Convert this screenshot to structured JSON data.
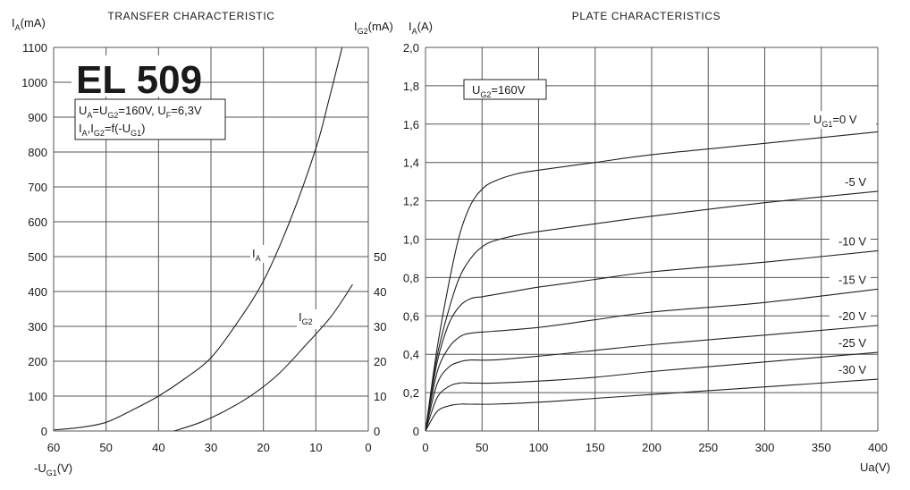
{
  "left_chart": {
    "title": "TRANSFER CHARACTERISTIC",
    "tube": "EL 509",
    "conditions": {
      "line1": {
        "a": "U",
        "b": "A",
        "c": "=U",
        "d": "G2",
        "e": "=160V, U",
        "f": "F",
        "g": "=6,3V"
      },
      "line2": {
        "a": "I",
        "b": "A",
        "c": ",I",
        "d": "G2",
        "e": "=f(-U",
        "f": "G1",
        "g": ")"
      }
    },
    "y_left_label": {
      "main": "I",
      "sub": "A",
      "tail": "(mA)"
    },
    "y_right_label": {
      "main": "I",
      "sub": "G2",
      "tail": "(mA)"
    },
    "x_label": {
      "main": "-U",
      "sub": "G1",
      "tail": "(V)"
    },
    "curve_labels": [
      {
        "main": "I",
        "sub": "A"
      },
      {
        "main": "I",
        "sub": "G2"
      }
    ]
  },
  "right_chart": {
    "title": "PLATE CHARACTERISTICS",
    "y_label": {
      "main": "I",
      "sub": "A",
      "tail": "(A)"
    },
    "x_label": "Ua(V)",
    "box": {
      "a": "U",
      "b": "G2",
      "c": "=160V"
    },
    "series_labels": {
      "first": {
        "main": "U",
        "sub": "G1",
        "tail": "=0 V"
      },
      "others": [
        "-5 V",
        "-10 V",
        "-15 V",
        "-20 V",
        "-25 V",
        "-30 V"
      ]
    }
  },
  "chart_data": [
    {
      "type": "line",
      "title": "TRANSFER CHARACTERISTIC",
      "xlabel": "-UG1(V)",
      "ylabel": "IA(mA)",
      "y2label": "IG2(mA)",
      "xlim": [
        60,
        0
      ],
      "ylim": [
        0,
        1100
      ],
      "y2lim": [
        0,
        110
      ],
      "grid": true,
      "x_ticks": [
        "60",
        "50",
        "40",
        "30",
        "20",
        "10",
        "0"
      ],
      "y_ticks": [
        "0",
        "100",
        "200",
        "300",
        "400",
        "500",
        "600",
        "700",
        "800",
        "900",
        "1000",
        "1100"
      ],
      "y2_ticks": [
        "0",
        "10",
        "20",
        "30",
        "40",
        "50"
      ],
      "series": [
        {
          "name": "IA",
          "axis": "left",
          "x": [
            60,
            55,
            50,
            45,
            40,
            35,
            30,
            25,
            20,
            15,
            10,
            7.5,
            5
          ],
          "y": [
            3,
            10,
            25,
            60,
            100,
            150,
            210,
            310,
            430,
            600,
            810,
            950,
            1100
          ]
        },
        {
          "name": "IG2",
          "axis": "right",
          "x": [
            37,
            32,
            27,
            22,
            17,
            12,
            7,
            3
          ],
          "y": [
            0,
            2.5,
            6,
            10.5,
            16.5,
            24.5,
            33,
            42
          ]
        }
      ]
    },
    {
      "type": "line",
      "title": "PLATE CHARACTERISTICS",
      "xlabel": "Ua(V)",
      "ylabel": "IA(A)",
      "annotation": "UG2=160V",
      "xlim": [
        0,
        400
      ],
      "ylim": [
        0,
        2.0
      ],
      "grid": true,
      "x_ticks": [
        "0",
        "50",
        "100",
        "150",
        "200",
        "250",
        "300",
        "350",
        "400"
      ],
      "y_ticks": [
        "0",
        "0,2",
        "0,4",
        "0,6",
        "0,8",
        "1,0",
        "1,2",
        "1,4",
        "1,6",
        "1,8",
        "2,0"
      ],
      "series": [
        {
          "name": "UG1=0 V",
          "x": [
            0,
            10,
            20,
            30,
            40,
            50,
            60,
            80,
            100,
            150,
            200,
            300,
            400
          ],
          "y": [
            0,
            0.42,
            0.75,
            1.02,
            1.18,
            1.26,
            1.3,
            1.34,
            1.36,
            1.4,
            1.44,
            1.5,
            1.56
          ]
        },
        {
          "name": "-5 V",
          "x": [
            0,
            10,
            20,
            30,
            40,
            50,
            60,
            80,
            100,
            150,
            200,
            300,
            400
          ],
          "y": [
            0,
            0.38,
            0.62,
            0.8,
            0.9,
            0.96,
            0.99,
            1.02,
            1.04,
            1.08,
            1.12,
            1.19,
            1.25
          ]
        },
        {
          "name": "-10 V",
          "x": [
            0,
            10,
            20,
            30,
            40,
            50,
            60,
            80,
            100,
            150,
            200,
            300,
            400
          ],
          "y": [
            0,
            0.35,
            0.55,
            0.65,
            0.69,
            0.7,
            0.71,
            0.73,
            0.75,
            0.79,
            0.83,
            0.88,
            0.94
          ]
        },
        {
          "name": "-15 V",
          "x": [
            0,
            10,
            20,
            30,
            40,
            60,
            100,
            150,
            200,
            300,
            400
          ],
          "y": [
            0,
            0.3,
            0.43,
            0.49,
            0.51,
            0.52,
            0.54,
            0.58,
            0.62,
            0.67,
            0.74
          ]
        },
        {
          "name": "-20 V",
          "x": [
            0,
            10,
            20,
            30,
            40,
            60,
            100,
            150,
            200,
            300,
            400
          ],
          "y": [
            0,
            0.24,
            0.33,
            0.36,
            0.37,
            0.37,
            0.39,
            0.42,
            0.45,
            0.5,
            0.55
          ]
        },
        {
          "name": "-25 V",
          "x": [
            0,
            10,
            20,
            30,
            40,
            60,
            100,
            150,
            200,
            300,
            400
          ],
          "y": [
            0,
            0.17,
            0.23,
            0.25,
            0.25,
            0.25,
            0.26,
            0.28,
            0.31,
            0.36,
            0.41
          ]
        },
        {
          "name": "-30 V",
          "x": [
            0,
            10,
            20,
            30,
            40,
            60,
            100,
            150,
            200,
            300,
            400
          ],
          "y": [
            0,
            0.1,
            0.13,
            0.14,
            0.14,
            0.14,
            0.15,
            0.17,
            0.19,
            0.23,
            0.27
          ]
        }
      ]
    }
  ]
}
